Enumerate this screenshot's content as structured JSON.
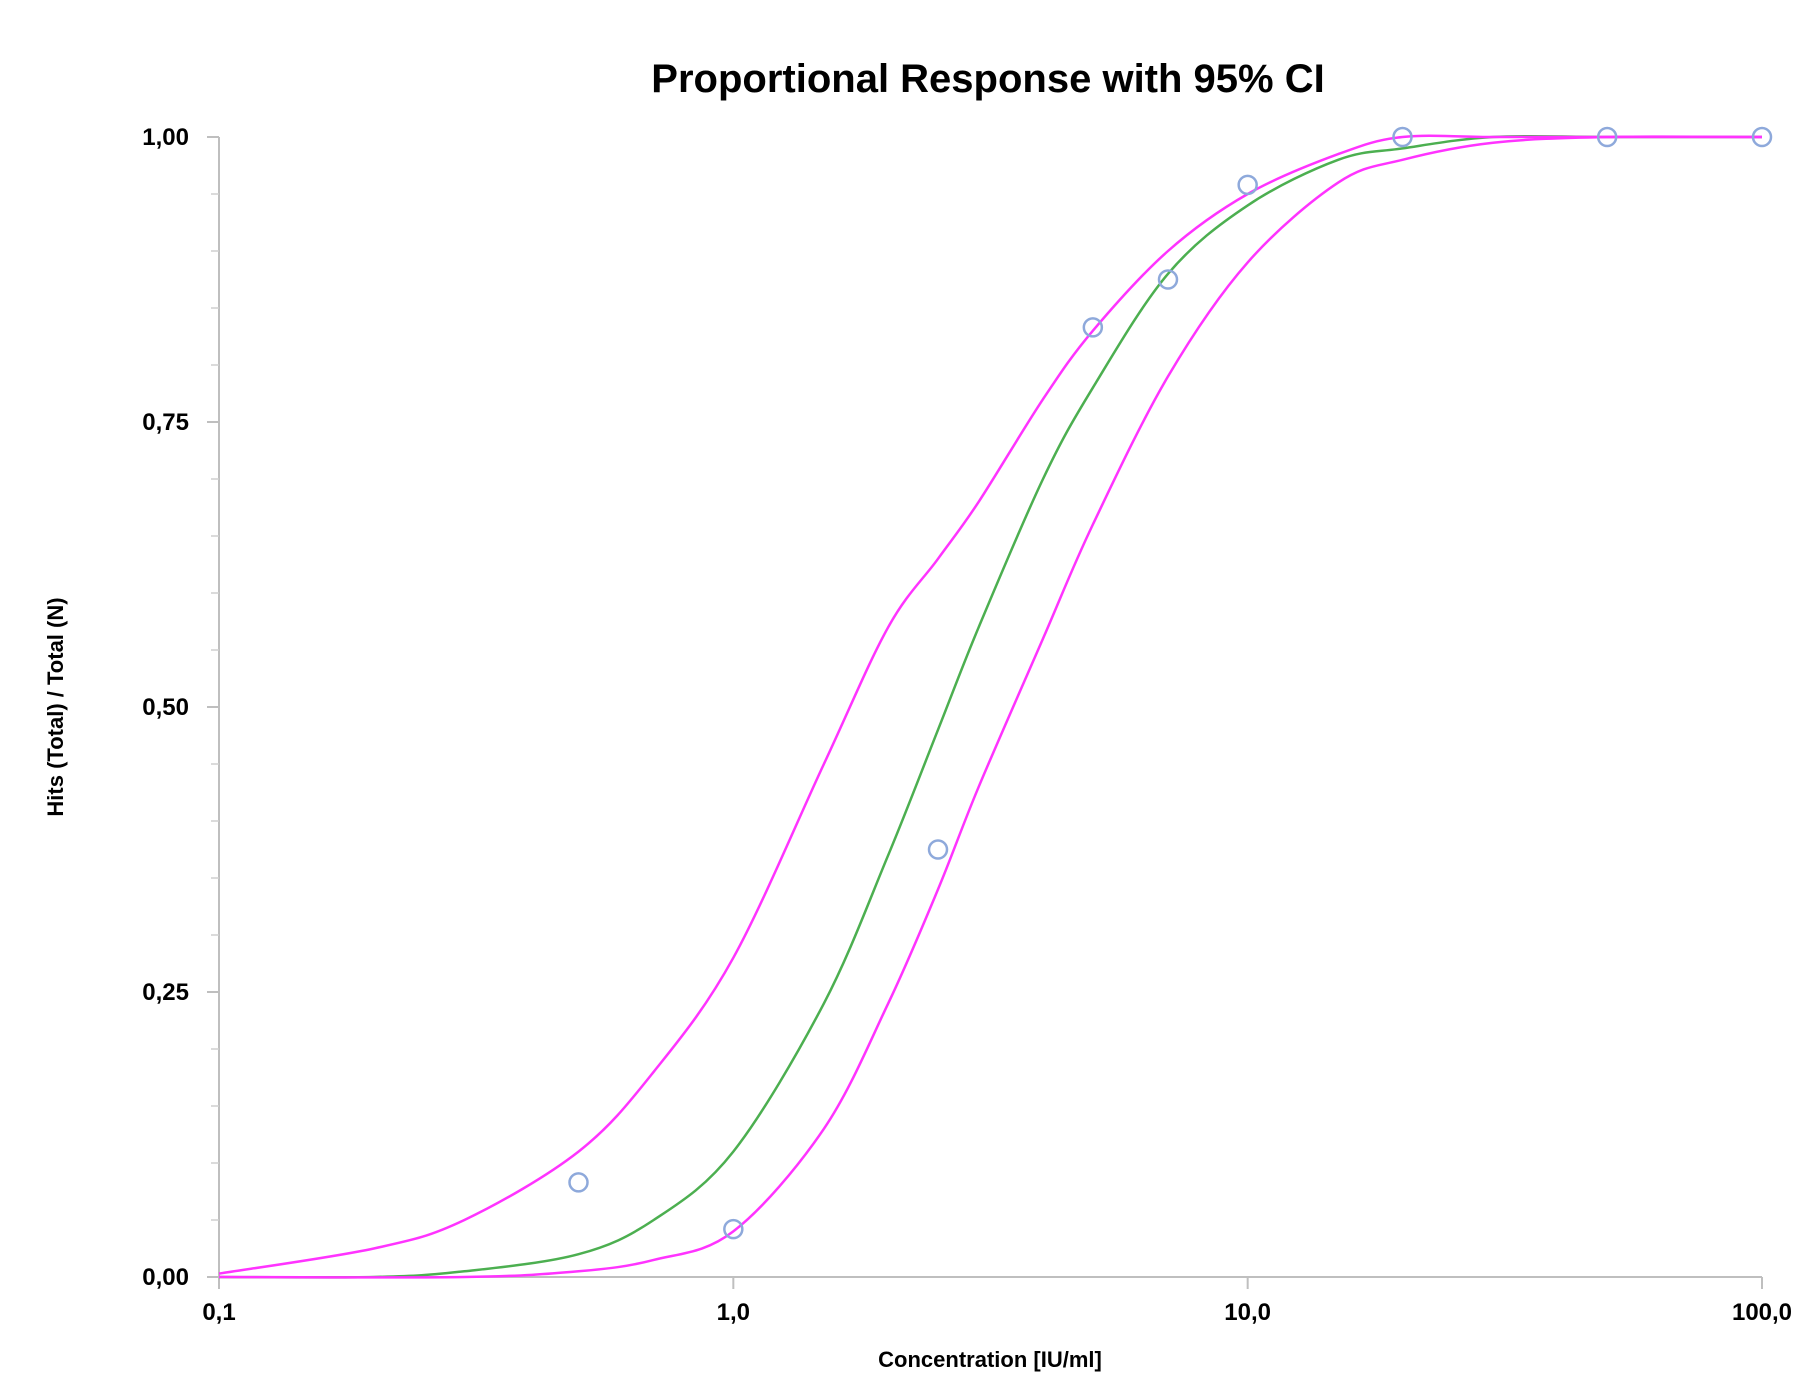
{
  "chart_data": {
    "type": "scatter",
    "title": "Proportional Response with 95% CI",
    "xlabel": "Concentration [IU/ml]",
    "ylabel": "Hits (Total) / Total (N)",
    "x_scale": "log",
    "xlim": [
      0.1,
      100
    ],
    "ylim": [
      0,
      1
    ],
    "x_ticks": [
      0.1,
      1,
      10,
      100
    ],
    "x_tick_labels": [
      "0,1",
      "1,0",
      "10,0",
      "100,0"
    ],
    "y_ticks": [
      0,
      0.25,
      0.5,
      0.75,
      1
    ],
    "y_tick_labels": [
      "0,00",
      "0,25",
      "0,50",
      "0,75",
      "1,00"
    ],
    "grid": false,
    "legend": "none",
    "series": [
      {
        "kind": "points",
        "color": "#8ea9db",
        "x": [
          0.5,
          1.0,
          2.5,
          5.0,
          7.0,
          10.0,
          20.0,
          50.0,
          100.0
        ],
        "y": [
          0.083,
          0.042,
          0.375,
          0.833,
          0.875,
          0.958,
          1.0,
          1.0,
          1.0
        ]
      },
      {
        "kind": "line",
        "color": "#4caf50",
        "x": [
          0.1,
          0.2,
          0.3,
          0.5,
          0.7,
          1.0,
          1.5,
          2.0,
          2.5,
          3.0,
          4.0,
          5.0,
          7.0,
          10.0,
          15.0,
          20.0,
          30.0,
          50.0,
          100.0
        ],
        "y": [
          0.0,
          0.0,
          0.005,
          0.02,
          0.05,
          0.11,
          0.24,
          0.37,
          0.48,
          0.57,
          0.7,
          0.78,
          0.88,
          0.94,
          0.98,
          0.99,
          1.0,
          1.0,
          1.0
        ]
      },
      {
        "kind": "line",
        "color": "#ff33ff",
        "x": [
          0.1,
          0.2,
          0.3,
          0.5,
          0.7,
          1.0,
          1.5,
          2.0,
          2.5,
          3.0,
          4.0,
          5.0,
          7.0,
          10.0,
          15.0,
          20.0,
          30.0,
          50.0,
          100.0
        ],
        "y": [
          0.003,
          0.025,
          0.05,
          0.11,
          0.18,
          0.28,
          0.45,
          0.57,
          0.63,
          0.68,
          0.77,
          0.83,
          0.9,
          0.95,
          0.985,
          1.0,
          1.0,
          1.0,
          1.0
        ]
      },
      {
        "kind": "line",
        "color": "#ff33ff",
        "x": [
          0.1,
          0.3,
          0.5,
          0.7,
          1.0,
          1.5,
          2.0,
          2.5,
          3.0,
          4.0,
          5.0,
          7.0,
          10.0,
          15.0,
          20.0,
          30.0,
          50.0,
          100.0
        ],
        "y": [
          0.0,
          0.0,
          0.005,
          0.015,
          0.04,
          0.13,
          0.24,
          0.34,
          0.43,
          0.56,
          0.66,
          0.79,
          0.89,
          0.96,
          0.98,
          0.995,
          1.0,
          1.0
        ]
      }
    ]
  }
}
